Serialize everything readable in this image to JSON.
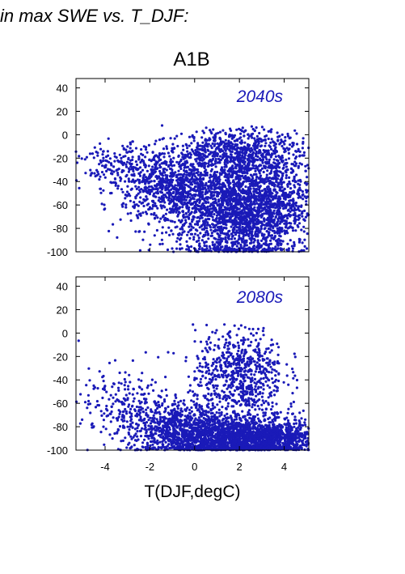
{
  "heading": "in max SWE vs. T_DJF:",
  "chart_data": {
    "type": "scatter",
    "title": "A1B",
    "xlabel": "T(DJF,degC)",
    "ylabel": "",
    "xlim": [
      -5.3,
      5.1
    ],
    "ylim": [
      -100,
      48
    ],
    "xticks": [
      -4,
      -2,
      0,
      2,
      4
    ],
    "yticks": [
      -100,
      -80,
      -60,
      -40,
      -20,
      0,
      20,
      40
    ],
    "marker_color": "#1a1ab8",
    "grid": false,
    "panels": [
      {
        "label": "2040s",
        "clusters": [
          {
            "x_center": 2.2,
            "x_spread": 1.5,
            "y_center": -62,
            "y_spread": 24,
            "count": 2600
          },
          {
            "x_center": -1.0,
            "x_spread": 1.1,
            "y_center": -45,
            "y_spread": 16,
            "count": 800
          },
          {
            "x_center": -3.4,
            "x_spread": 0.9,
            "y_center": -28,
            "y_spread": 10,
            "count": 180
          },
          {
            "x_center": 2.0,
            "x_spread": 1.4,
            "y_center": -15,
            "y_spread": 10,
            "count": 600
          }
        ]
      },
      {
        "label": "2080s",
        "clusters": [
          {
            "x_center": 2.5,
            "x_spread": 1.5,
            "y_center": -90,
            "y_spread": 9,
            "count": 2000
          },
          {
            "x_center": -0.6,
            "x_spread": 1.2,
            "y_center": -82,
            "y_spread": 12,
            "count": 900
          },
          {
            "x_center": -3.2,
            "x_spread": 1.0,
            "y_center": -60,
            "y_spread": 15,
            "count": 200
          },
          {
            "x_center": 2.0,
            "x_spread": 1.0,
            "y_center": -35,
            "y_spread": 20,
            "count": 700
          }
        ]
      }
    ]
  }
}
